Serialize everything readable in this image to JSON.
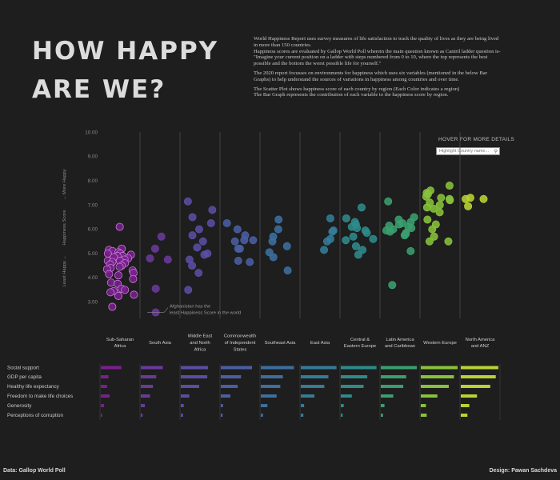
{
  "header": {
    "title_line1": "HOW HAPPY",
    "title_line2": "ARE WE?",
    "desc_p1": "World Happiness Report uses survey measures of life satisfaction to track the quality of lives as they are being lived in more than 150 countries.",
    "desc_p2": "Happiness scores are evaluated by Gallop World Poll wherein the main question known as Cantril ladder question is- \"Imagine your current position on a ladder with steps numbered from 0 to 10, where the top represents the best possible and the bottom the worst possible life for yourself.\"",
    "desc_p3": "The 2020 report focusses on environments for happiness which uses six variables (mentioned in the below Bar Graphs) to help understand the sources of variations in happiness among countries and over time.",
    "desc_p4": "The Scatter Plot shows happiness score of each country by region (Each Color indicates a region)",
    "desc_p5": "The Bar Graph represents the contribution of each variable to the happiness score by region."
  },
  "controls": {
    "hover_label": "HOVER FOR MORE DETAILS",
    "search_placeholder": "Highlight Country name...",
    "search_icon": "magnifier-icon"
  },
  "footer": {
    "source": "Data: Gallop World Poll",
    "designer": "Design: Pawan Sachdeva"
  },
  "chart_data": [
    {
      "type": "scatter",
      "ylabel_top": "→ More Happy",
      "ylabel_mid": "Happiness Score",
      "ylabel_bottom": "Least Happy ←",
      "ylim": [
        2.5,
        10
      ],
      "yticks": [
        "3.00",
        "4.00",
        "5.00",
        "6.00",
        "7.00",
        "8.00",
        "9.00",
        "10.00"
      ],
      "grid": false,
      "annotation": "Afghanistan has the least Happiness Score in the world",
      "regions": [
        {
          "name": "Sub-Saharan Africa",
          "color": "#7a1f8f",
          "values": [
            6.1,
            5.2,
            5.15,
            5.1,
            5.05,
            5.0,
            5.0,
            4.95,
            4.9,
            4.9,
            4.85,
            4.8,
            4.75,
            4.7,
            4.7,
            4.65,
            4.6,
            4.55,
            4.5,
            4.45,
            4.4,
            4.35,
            4.3,
            4.2,
            4.15,
            4.1,
            3.95,
            3.8,
            3.75,
            3.55,
            3.5,
            3.45,
            3.4,
            3.3,
            3.25,
            2.8
          ]
        },
        {
          "name": "South Asia",
          "color": "#6a3a9a",
          "values": [
            5.7,
            5.2,
            4.8,
            4.75,
            3.55,
            2.57
          ]
        },
        {
          "name": "Middle East and North Africa",
          "color": "#5a4ea3",
          "values": [
            7.15,
            6.8,
            6.5,
            6.25,
            6.0,
            5.75,
            5.5,
            5.25,
            5.0,
            4.95,
            4.75,
            4.5,
            4.2,
            3.5
          ]
        },
        {
          "name": "Commonwealth of Independent States",
          "color": "#4a5fa3",
          "values": [
            6.25,
            6.0,
            5.75,
            5.55,
            5.55,
            5.5,
            5.2,
            5.2,
            4.7,
            4.65
          ]
        },
        {
          "name": "Southeast Asia",
          "color": "#3d6e9f",
          "values": [
            6.4,
            6.0,
            5.7,
            5.5,
            5.3,
            5.05,
            4.85,
            4.3
          ]
        },
        {
          "name": "East Asia",
          "color": "#347c98",
          "values": [
            6.45,
            5.95,
            5.9,
            5.6,
            5.5,
            5.15
          ]
        },
        {
          "name": "Central & Eastern Europe",
          "color": "#2e8b8b",
          "values": [
            6.9,
            6.45,
            6.3,
            6.2,
            6.1,
            6.05,
            5.95,
            5.85,
            5.7,
            5.6,
            5.55,
            5.3,
            5.15,
            4.95
          ]
        },
        {
          "name": "Latin America and Caribbean",
          "color": "#3a9f6e",
          "values": [
            7.15,
            6.5,
            6.4,
            6.3,
            6.25,
            6.2,
            6.15,
            6.1,
            6.05,
            6.0,
            5.95,
            5.9,
            5.85,
            5.8,
            5.75,
            5.1,
            3.7
          ]
        },
        {
          "name": "Western Europe",
          "color": "#88c23a",
          "values": [
            7.8,
            7.6,
            7.5,
            7.45,
            7.35,
            7.3,
            7.25,
            7.2,
            7.1,
            7.0,
            6.9,
            6.85,
            6.7,
            6.4,
            6.2,
            6.0,
            5.7,
            5.5,
            5.5
          ]
        },
        {
          "name": "North America and ANZ",
          "color": "#b8d432",
          "values": [
            7.3,
            7.25,
            7.25,
            6.95
          ]
        }
      ]
    },
    {
      "type": "bar",
      "series": [
        "Social support",
        "GDP per capita",
        "Healthy life expectancy",
        "Freedom to make life choices",
        "Generosity",
        "Perceptions of corruption"
      ],
      "categories": [
        {
          "label": "Sub-Saharan Africa",
          "color": "#7a1f8f",
          "values": [
            0.56,
            0.21,
            0.17,
            0.24,
            0.09,
            0.04
          ]
        },
        {
          "label": "South Asia",
          "color": "#6a3a9a",
          "values": [
            0.6,
            0.42,
            0.33,
            0.25,
            0.11,
            0.05
          ]
        },
        {
          "label": "Middle East and North Africa",
          "color": "#5a4ea3",
          "values": [
            0.74,
            0.72,
            0.5,
            0.23,
            0.08,
            0.06
          ]
        },
        {
          "label": "Commonwealth of Independent States",
          "color": "#4a5fa3",
          "values": [
            0.85,
            0.55,
            0.46,
            0.26,
            0.06,
            0.05
          ]
        },
        {
          "label": "Southeast Asia",
          "color": "#3d6e9f",
          "values": [
            0.9,
            0.6,
            0.53,
            0.43,
            0.18,
            0.06
          ]
        },
        {
          "label": "East Asia",
          "color": "#347c98",
          "values": [
            0.97,
            0.75,
            0.64,
            0.37,
            0.09,
            0.07
          ]
        },
        {
          "label": "Central & Eastern Europe",
          "color": "#2e8b8b",
          "values": [
            0.97,
            0.72,
            0.62,
            0.3,
            0.08,
            0.05
          ]
        },
        {
          "label": "Latin America and Caribbean",
          "color": "#3a9f6e",
          "values": [
            0.98,
            0.69,
            0.61,
            0.34,
            0.1,
            0.06
          ]
        },
        {
          "label": "Western Europe",
          "color": "#88c23a",
          "values": [
            1.0,
            0.9,
            0.76,
            0.45,
            0.14,
            0.16
          ]
        },
        {
          "label": "North America and ANZ",
          "color": "#b8d432",
          "values": [
            1.02,
            0.95,
            0.8,
            0.44,
            0.23,
            0.18
          ]
        }
      ]
    }
  ]
}
